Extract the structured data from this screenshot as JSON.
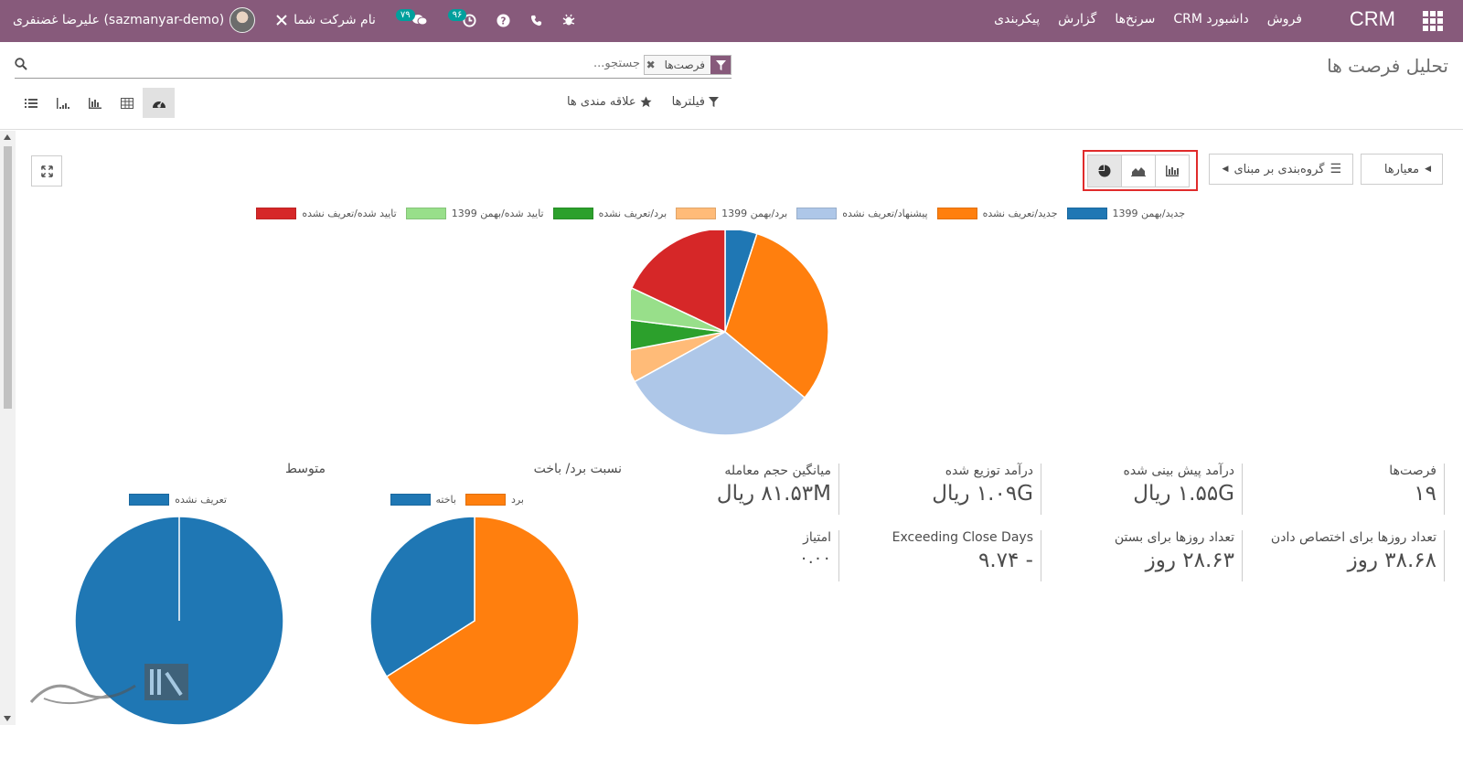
{
  "navbar": {
    "brand": "CRM",
    "menu": [
      "فروش",
      "داشبورد CRM",
      "سرنخ‌ها",
      "گزارش",
      "پیکربندی"
    ],
    "company": "نام شرکت شما",
    "user": "علیرضا غضنفری (sazmanyar-demo)",
    "badge_activity": "۹۶",
    "badge_messages": "۷۹"
  },
  "control_panel": {
    "breadcrumb": "تحلیل فرصت ها",
    "facet_value": "فرصت‌ها",
    "search_placeholder": "جستجو...",
    "filters_label": "فیلترها",
    "favorites_label": "علاقه مندی ها"
  },
  "dashboard": {
    "measures_label": "معیارها",
    "groupby_label": "گروه‌بندی بر مبنای"
  },
  "chart_data": [
    {
      "type": "pie",
      "legend_position": "top",
      "series": [
        {
          "name": "جدید/بهمن 1399",
          "value": 5,
          "color": "#1f77b4"
        },
        {
          "name": "جدید/تعریف نشده",
          "value": 31,
          "color": "#ff7f0e"
        },
        {
          "name": "پیشنهاد/تعریف نشده",
          "value": 31,
          "color": "#aec7e8"
        },
        {
          "name": "برد/بهمن 1399",
          "value": 5,
          "color": "#ffbb78"
        },
        {
          "name": "برد/تعریف نشده",
          "value": 5,
          "color": "#2ca02c"
        },
        {
          "name": "تایید شده/بهمن 1399",
          "value": 5,
          "color": "#98df8a"
        },
        {
          "name": "تایید شده/تعریف نشده",
          "value": 18,
          "color": "#d62728"
        }
      ]
    },
    {
      "type": "pie",
      "title": "نسبت برد/ باخت",
      "series": [
        {
          "name": "برد",
          "value": 66,
          "color": "#ff7f0e"
        },
        {
          "name": "باخته",
          "value": 34,
          "color": "#1f77b4"
        }
      ]
    },
    {
      "type": "pie",
      "title": "متوسط",
      "series": [
        {
          "name": "تعریف نشده",
          "value": 100,
          "color": "#1f77b4"
        }
      ]
    }
  ],
  "aggregates": [
    {
      "label": "فرصت‌ها",
      "value": "۱۹"
    },
    {
      "label": "درآمد پیش بینی شده",
      "value": "۱.۵۵G ریال"
    },
    {
      "label": "درآمد توزیع شده",
      "value": "۱.۰۹G ریال"
    },
    {
      "label": "میانگین حجم معامله",
      "value": "۸۱.۵۳M ریال"
    },
    {
      "label": "تعداد روزها برای اختصاص دادن",
      "value": "۳۸.۶۸ روز"
    },
    {
      "label": "تعداد روزها برای بستن",
      "value": "۲۸.۶۳ روز"
    },
    {
      "label": "Exceeding Close Days",
      "value": "-  ۹.۷۴"
    },
    {
      "label": "امتیاز",
      "value": "۰.۰۰"
    }
  ]
}
